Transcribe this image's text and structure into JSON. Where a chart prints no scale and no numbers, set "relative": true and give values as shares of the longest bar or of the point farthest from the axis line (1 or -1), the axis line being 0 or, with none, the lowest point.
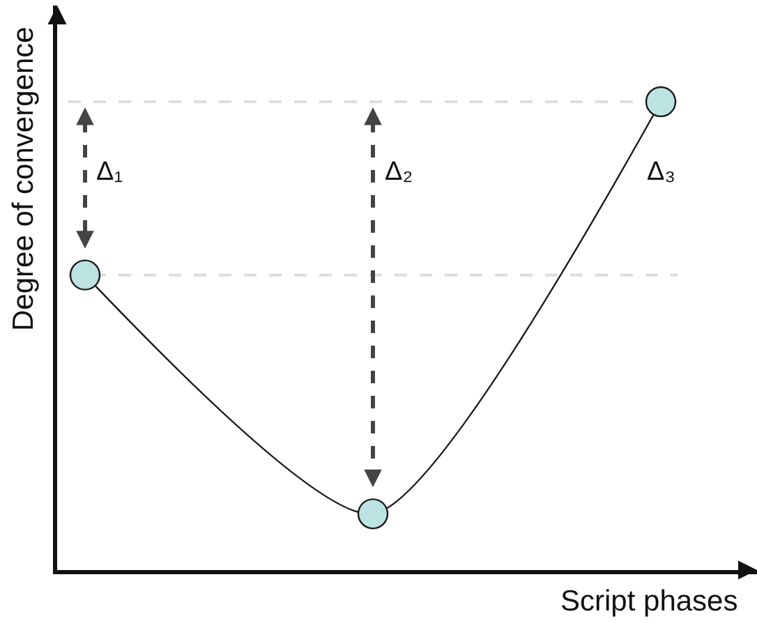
{
  "chart_data": {
    "type": "line",
    "relative": true,
    "xlabel": "Script phases",
    "ylabel": "Degree of convergence",
    "categories": [
      null,
      null,
      null
    ],
    "series": [
      {
        "color": "#1a1a1a",
        "colors": [
          "#bde2e2",
          "#bde2e2",
          "#bde2e2"
        ],
        "values": [
          0.63,
          0.12,
          1
        ]
      }
    ],
    "marker": "circle",
    "line_style": "solid",
    "ref_lines": [
      {
        "axis": "y",
        "value": 1,
        "color": "#dddddd",
        "line_style": "dashed"
      },
      {
        "axis": "y",
        "value": 0.63,
        "color": "#dddddd",
        "line_style": "dashed"
      }
    ],
    "annotations": [
      "Δ₁",
      "Δ₂",
      "Δ₃"
    ]
  }
}
